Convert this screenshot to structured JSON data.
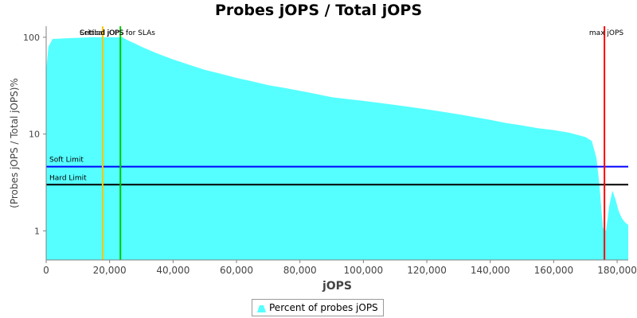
{
  "chart_data": {
    "type": "area",
    "title": "Probes jOPS / Total jOPS",
    "xlabel": "jOPS",
    "ylabel": "(Probes jOPS / Total jOPS)%",
    "yscale": "log",
    "xlim": [
      0,
      183500
    ],
    "ylim": [
      0.5,
      130
    ],
    "x_ticks": [
      0,
      20000,
      40000,
      60000,
      80000,
      100000,
      120000,
      140000,
      160000,
      180000
    ],
    "x_tick_labels": [
      "0",
      "20,000",
      "40,000",
      "60,000",
      "80,000",
      "100,000",
      "120,000",
      "140,000",
      "160,000",
      "180,000"
    ],
    "y_ticks": [
      1,
      10,
      100
    ],
    "y_tick_labels": [
      "1",
      "10",
      "100"
    ],
    "area_color": "#55FFFF",
    "series": [
      {
        "name": "Percent of probes jOPS",
        "x": [
          0,
          700,
          2000,
          8000,
          15000,
          20000,
          24000,
          26000,
          28000,
          30000,
          35000,
          40000,
          45000,
          50000,
          55000,
          60000,
          65000,
          70000,
          75000,
          80000,
          85000,
          90000,
          95000,
          100000,
          105000,
          110000,
          115000,
          120000,
          125000,
          130000,
          135000,
          140000,
          145000,
          150000,
          155000,
          160000,
          165000,
          170000,
          172000,
          173500,
          174500,
          175500,
          176500,
          177500,
          178500,
          179500,
          180500,
          181500,
          182500,
          183500
        ],
        "y": [
          45,
          80,
          96,
          98,
          100,
          100,
          100,
          92,
          86,
          80,
          68,
          59,
          52,
          46,
          42,
          38,
          35,
          32,
          30,
          28,
          26,
          24,
          23,
          22,
          21,
          20,
          19,
          18,
          17,
          16,
          15,
          14,
          13,
          12.3,
          11.5,
          11.0,
          10.3,
          9.3,
          8.5,
          5.6,
          2.8,
          1.08,
          1.0,
          1.8,
          2.6,
          2.1,
          1.6,
          1.35,
          1.22,
          1.15
        ]
      }
    ],
    "reference_lines": [
      {
        "orientation": "horizontal",
        "value": 4.6,
        "label": "Soft Limit",
        "color": "#0000FF"
      },
      {
        "orientation": "horizontal",
        "value": 3.0,
        "label": "Hard Limit",
        "color": "#000000"
      },
      {
        "orientation": "vertical",
        "value": 17800,
        "label": "Settled jOPS",
        "color": "#FFC800"
      },
      {
        "orientation": "vertical",
        "value": 23400,
        "label": "Critical jOPS for SLAs",
        "color": "#00C800"
      },
      {
        "orientation": "vertical",
        "value": 176000,
        "label": "max jOPS",
        "color": "#FF0000"
      }
    ],
    "grid": false,
    "legend_position": "bottom"
  }
}
